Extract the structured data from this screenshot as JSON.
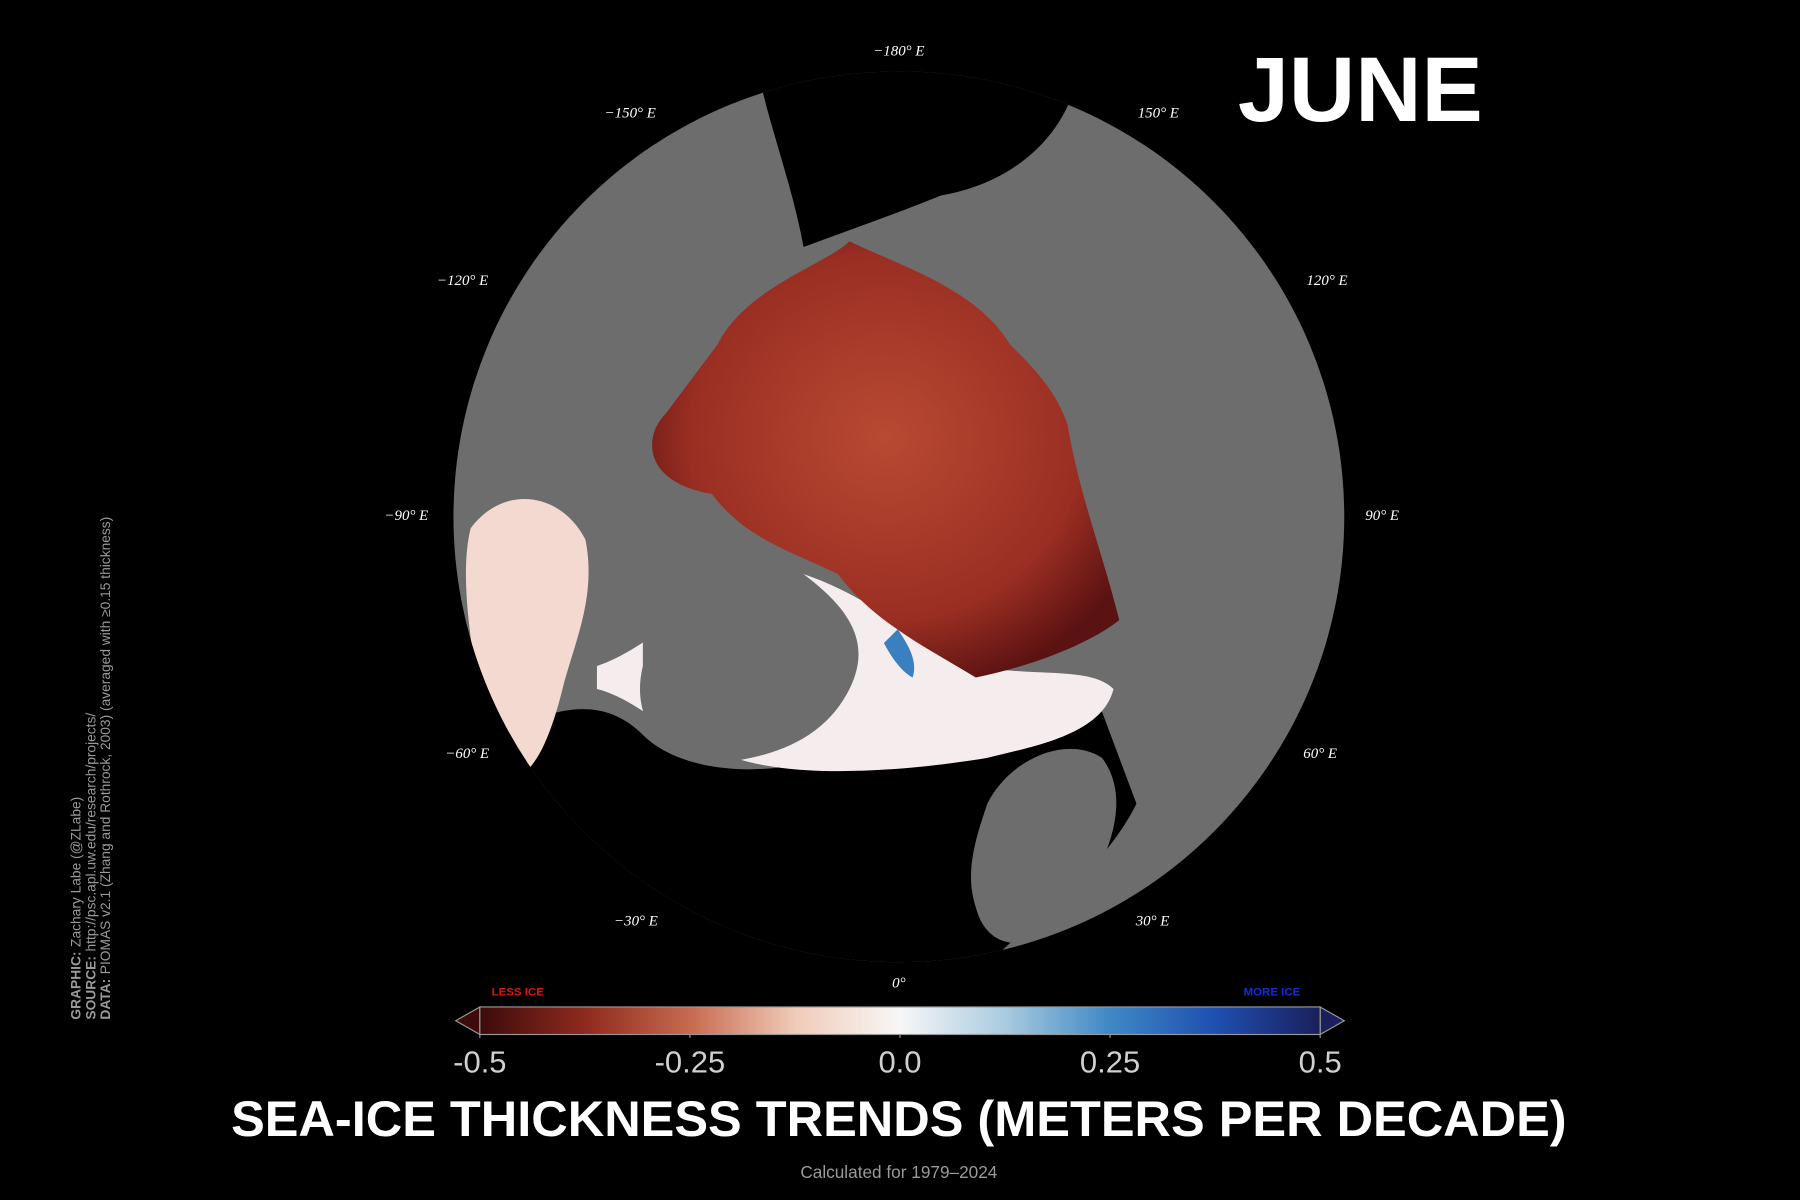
{
  "title": "JUNE",
  "map": {
    "longitude_labels": [
      "−180° E",
      "−150° E",
      "150° E",
      "−120° E",
      "120° E",
      "−90° E",
      "90° E",
      "−60° E",
      "60° E",
      "−30° E",
      "30° E",
      "0°"
    ]
  },
  "colorbar": {
    "lim": [
      -0.5,
      0.5
    ],
    "ticks": [
      -0.5,
      -0.25,
      {
        "value": 0,
        "label": "0.0"
      },
      0.25,
      0.5
    ],
    "colors": [
      "#3d0b0b",
      "#8e2a1e",
      "#c76a4f",
      "#f0cbb8",
      "#f7f7f7",
      "#a9cbe0",
      "#3f88c5",
      "#1f4fb0",
      "#1b1f5c"
    ],
    "left_label": "LESS ICE",
    "right_label": "MORE ICE"
  },
  "footer": {
    "title": "SEA-ICE THICKNESS TRENDS (METERS PER DECADE)",
    "subtitle": "Calculated for 1979–2024"
  },
  "credits": [
    {
      "label": "GRAPHIC:",
      "text": "Zachary Labe (@ZLabe)"
    },
    {
      "label": "SOURCE:",
      "text": "http://psc.apl.uw.edu/research/projects/"
    },
    {
      "label": "DATA:",
      "text": "PIOMAS v2.1 (Zhang and Rothrock, 2003) (averaged with ≥0.15 thickness)"
    }
  ]
}
